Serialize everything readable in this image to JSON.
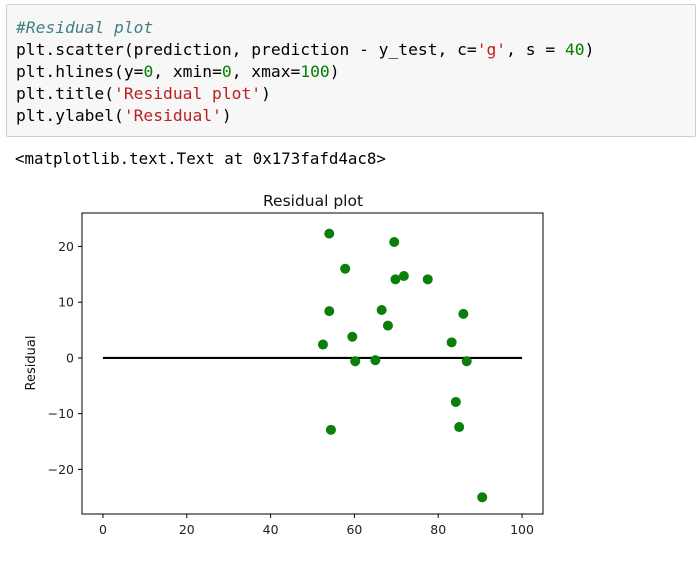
{
  "code_cell": {
    "lines": [
      [
        {
          "t": "#Residual plot",
          "c": "cm"
        }
      ],
      [
        {
          "t": "plt.scatter(prediction, prediction - y_test, c="
        },
        {
          "t": "'g'",
          "c": "str"
        },
        {
          "t": ", s = "
        },
        {
          "t": "40",
          "c": "num"
        },
        {
          "t": ")"
        }
      ],
      [
        {
          "t": "plt.hlines(y="
        },
        {
          "t": "0",
          "c": "num"
        },
        {
          "t": ", xmin="
        },
        {
          "t": "0",
          "c": "num"
        },
        {
          "t": ", xmax="
        },
        {
          "t": "100",
          "c": "num"
        },
        {
          "t": ")"
        }
      ],
      [
        {
          "t": "plt.title("
        },
        {
          "t": "'Residual plot'",
          "c": "str"
        },
        {
          "t": ")"
        }
      ],
      [
        {
          "t": "plt.ylabel("
        },
        {
          "t": "'Residual'",
          "c": "str"
        },
        {
          "t": ")"
        }
      ]
    ]
  },
  "output": {
    "text": "<matplotlib.text.Text at 0x173fafd4ac8>"
  },
  "chart_data": {
    "type": "scatter",
    "title": "Residual plot",
    "xlabel": "",
    "ylabel": "Residual",
    "xlim": [
      -5,
      105
    ],
    "ylim": [
      -28,
      26
    ],
    "xticks": [
      0,
      20,
      40,
      60,
      80,
      100
    ],
    "yticks": [
      -20,
      -10,
      0,
      10,
      20
    ],
    "grid": false,
    "marker_color": "#0a7f0a",
    "hline": {
      "y": 0,
      "xmin": 0,
      "xmax": 100,
      "color": "#000000"
    },
    "points": [
      {
        "x": 54.0,
        "y": 22.3
      },
      {
        "x": 69.5,
        "y": 20.8
      },
      {
        "x": 57.8,
        "y": 16.0
      },
      {
        "x": 71.8,
        "y": 14.7
      },
      {
        "x": 69.8,
        "y": 14.1
      },
      {
        "x": 77.5,
        "y": 14.1
      },
      {
        "x": 54.0,
        "y": 8.4
      },
      {
        "x": 66.5,
        "y": 8.6
      },
      {
        "x": 86.0,
        "y": 7.9
      },
      {
        "x": 68.0,
        "y": 5.8
      },
      {
        "x": 59.5,
        "y": 3.8
      },
      {
        "x": 52.5,
        "y": 2.4
      },
      {
        "x": 83.2,
        "y": 2.8
      },
      {
        "x": 60.2,
        "y": -0.6
      },
      {
        "x": 65.0,
        "y": -0.4
      },
      {
        "x": 86.8,
        "y": -0.6
      },
      {
        "x": 84.2,
        "y": -7.9
      },
      {
        "x": 85.0,
        "y": -12.4
      },
      {
        "x": 54.4,
        "y": -12.9
      },
      {
        "x": 90.5,
        "y": -25.0
      }
    ]
  }
}
